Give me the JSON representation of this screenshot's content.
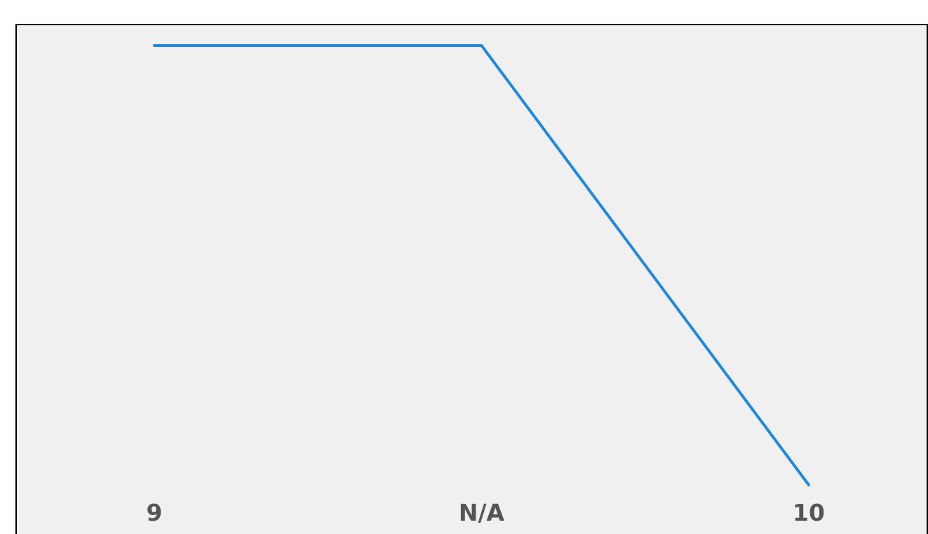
{
  "chart_data": {
    "type": "line",
    "categories": [
      "9",
      "N/A",
      "10"
    ],
    "series": [
      {
        "values": [
          1.0,
          1.0,
          0.0
        ]
      }
    ],
    "title": "",
    "xlabel": "",
    "ylabel": "",
    "grid": false,
    "legend": "none"
  },
  "colors": {
    "line": "#1e88e5",
    "background": "#f0f0f0",
    "tick_text": "#555555",
    "frame": "#000000"
  }
}
